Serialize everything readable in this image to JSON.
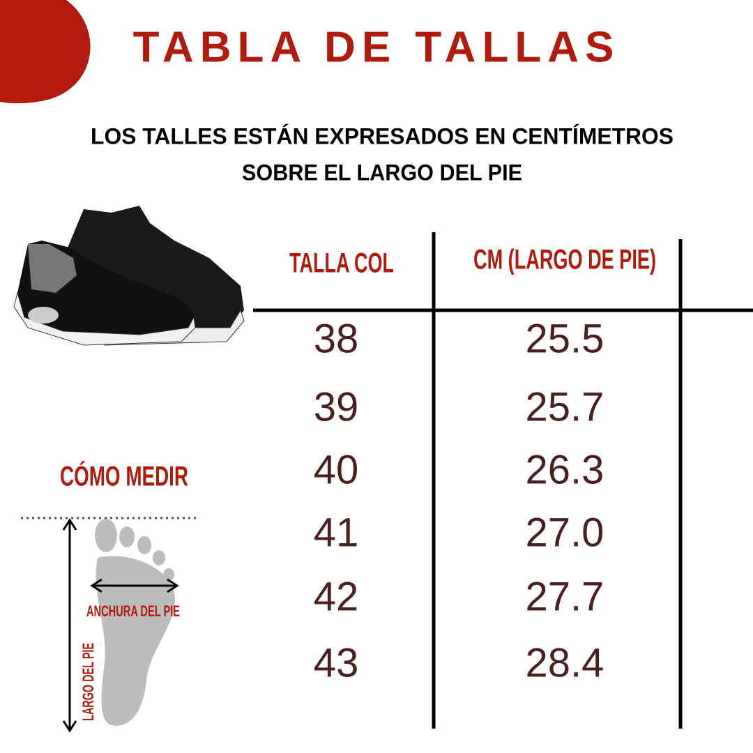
{
  "header": {
    "title": "TABLA DE TALLAS",
    "subtitle": [
      "LOS TALLES ESTÁN EXPRESADOS EN CENTÍMETROS",
      "SOBRE EL LARGO DEL PIE"
    ]
  },
  "table": {
    "columns": [
      "TALLA COL",
      "CM (LARGO DE PIE)"
    ],
    "rows": [
      [
        "38",
        "25.5"
      ],
      [
        "39",
        "25.7"
      ],
      [
        "40",
        "26.3"
      ],
      [
        "41",
        "27.0"
      ],
      [
        "42",
        "27.7"
      ],
      [
        "43",
        "28.4"
      ]
    ]
  },
  "guide": {
    "title": "CÓMO MEDIR",
    "width_label": "ANCHURA DEL PIE",
    "length_label": "LARGO DEL PIE"
  }
}
